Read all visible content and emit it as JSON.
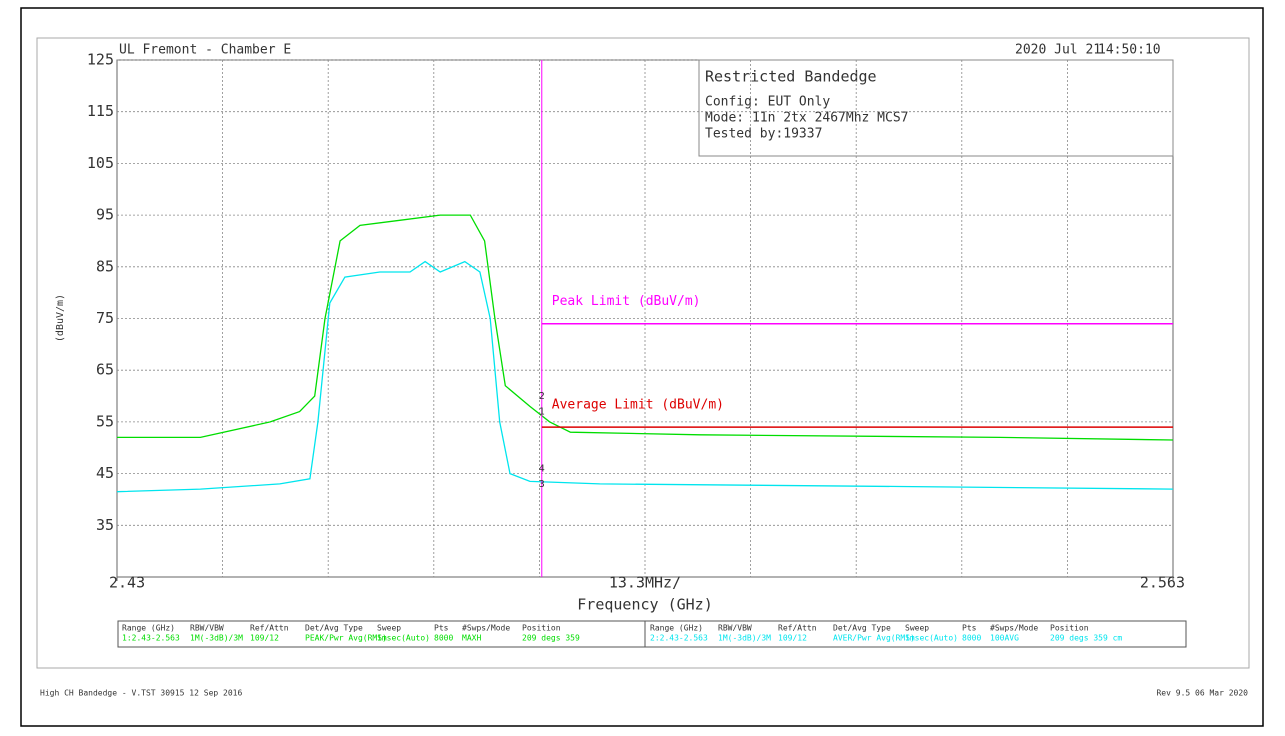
{
  "chart_data": {
    "type": "line",
    "header_left": "UL Fremont - Chamber E",
    "header_date": "2020 Jul 21",
    "header_time": "14:50:10",
    "info_box": [
      "Restricted Bandedge",
      "Config: EUT Only",
      "Mode: 11n 2tx 2467Mhz MCS7",
      "Tested by:19337"
    ],
    "y_label": "(dBuV/m)",
    "x_label": "Frequency (GHz)",
    "x_span_label": "13.3MHz/",
    "xlim": [
      2.43,
      2.563
    ],
    "xticks": [
      2.43,
      2.563
    ],
    "x_divisions": 10,
    "ylim": [
      25,
      125
    ],
    "yticks": [
      35,
      45,
      55,
      65,
      75,
      85,
      95,
      105,
      115,
      125
    ],
    "grid": true,
    "series": [
      {
        "name": "PEAK",
        "color": "#00dd00",
        "x": [
          2.43,
          2.4405,
          2.4493,
          2.453,
          2.4549,
          2.4562,
          2.4581,
          2.4606,
          2.4656,
          2.4707,
          2.4745,
          2.4763,
          2.4776,
          2.4789,
          2.482,
          2.4845,
          2.4871,
          2.5034,
          2.5412,
          2.563
        ],
        "values": [
          52,
          52,
          55,
          57,
          60,
          75,
          90,
          93,
          94,
          95,
          95,
          90,
          75,
          62,
          58,
          55,
          53,
          52.5,
          52,
          51.5
        ]
      },
      {
        "name": "AVER",
        "color": "#00e5ee",
        "x": [
          2.43,
          2.4405,
          2.4505,
          2.4543,
          2.4553,
          2.4568,
          2.4587,
          2.4631,
          2.4669,
          2.4688,
          2.4707,
          2.4738,
          2.4757,
          2.477,
          2.4782,
          2.4795,
          2.482,
          2.4908,
          2.5286,
          2.563
        ],
        "values": [
          41.5,
          42,
          43,
          44,
          55,
          78,
          83,
          84,
          84,
          86,
          84,
          86,
          84,
          75,
          55,
          45,
          43.5,
          43,
          42.5,
          42
        ]
      }
    ],
    "limits": [
      {
        "name": "Peak Limit (dBuV/m)",
        "color": "#ff00ff",
        "x": [
          2.4835,
          2.563
        ],
        "values": [
          74,
          74
        ]
      },
      {
        "name": "Average Limit (dBuV/m)",
        "color": "#dd0000",
        "x": [
          2.4835,
          2.563
        ],
        "values": [
          54,
          54
        ]
      }
    ],
    "marker_line": {
      "x": 2.4835,
      "color": "#ff00ff"
    },
    "markers": [
      {
        "label": "1",
        "x": 2.4835,
        "y": 57
      },
      {
        "label": "2",
        "x": 2.4835,
        "y": 60
      },
      {
        "label": "3",
        "x": 2.4835,
        "y": 43
      },
      {
        "label": "4",
        "x": 2.4835,
        "y": 46
      }
    ],
    "settings_table": {
      "headers": [
        "Range (GHz)",
        "RBW/VBW",
        "Ref/Attn",
        "Det/Avg Type",
        "Sweep",
        "Pts",
        "#Swps/Mode",
        "Position"
      ],
      "rows": [
        [
          "1:2.43-2.563",
          "1M(-3dB)/3M",
          "109/12",
          "PEAK/Pwr Avg(RMS)",
          "1msec(Auto)",
          "8000",
          "MAXH",
          "209 degs 359"
        ],
        [
          "2:2.43-2.563",
          "1M(-3dB)/3M",
          "109/12",
          "AVER/Pwr Avg(RMS)",
          "1msec(Auto)",
          "8000",
          "100AVG",
          "209 degs 359 cm"
        ]
      ]
    },
    "footer_left": "High CH Bandedge - V.TST 30915 12 Sep 2016",
    "footer_right": "Rev 9.5 06 Mar 2020"
  }
}
